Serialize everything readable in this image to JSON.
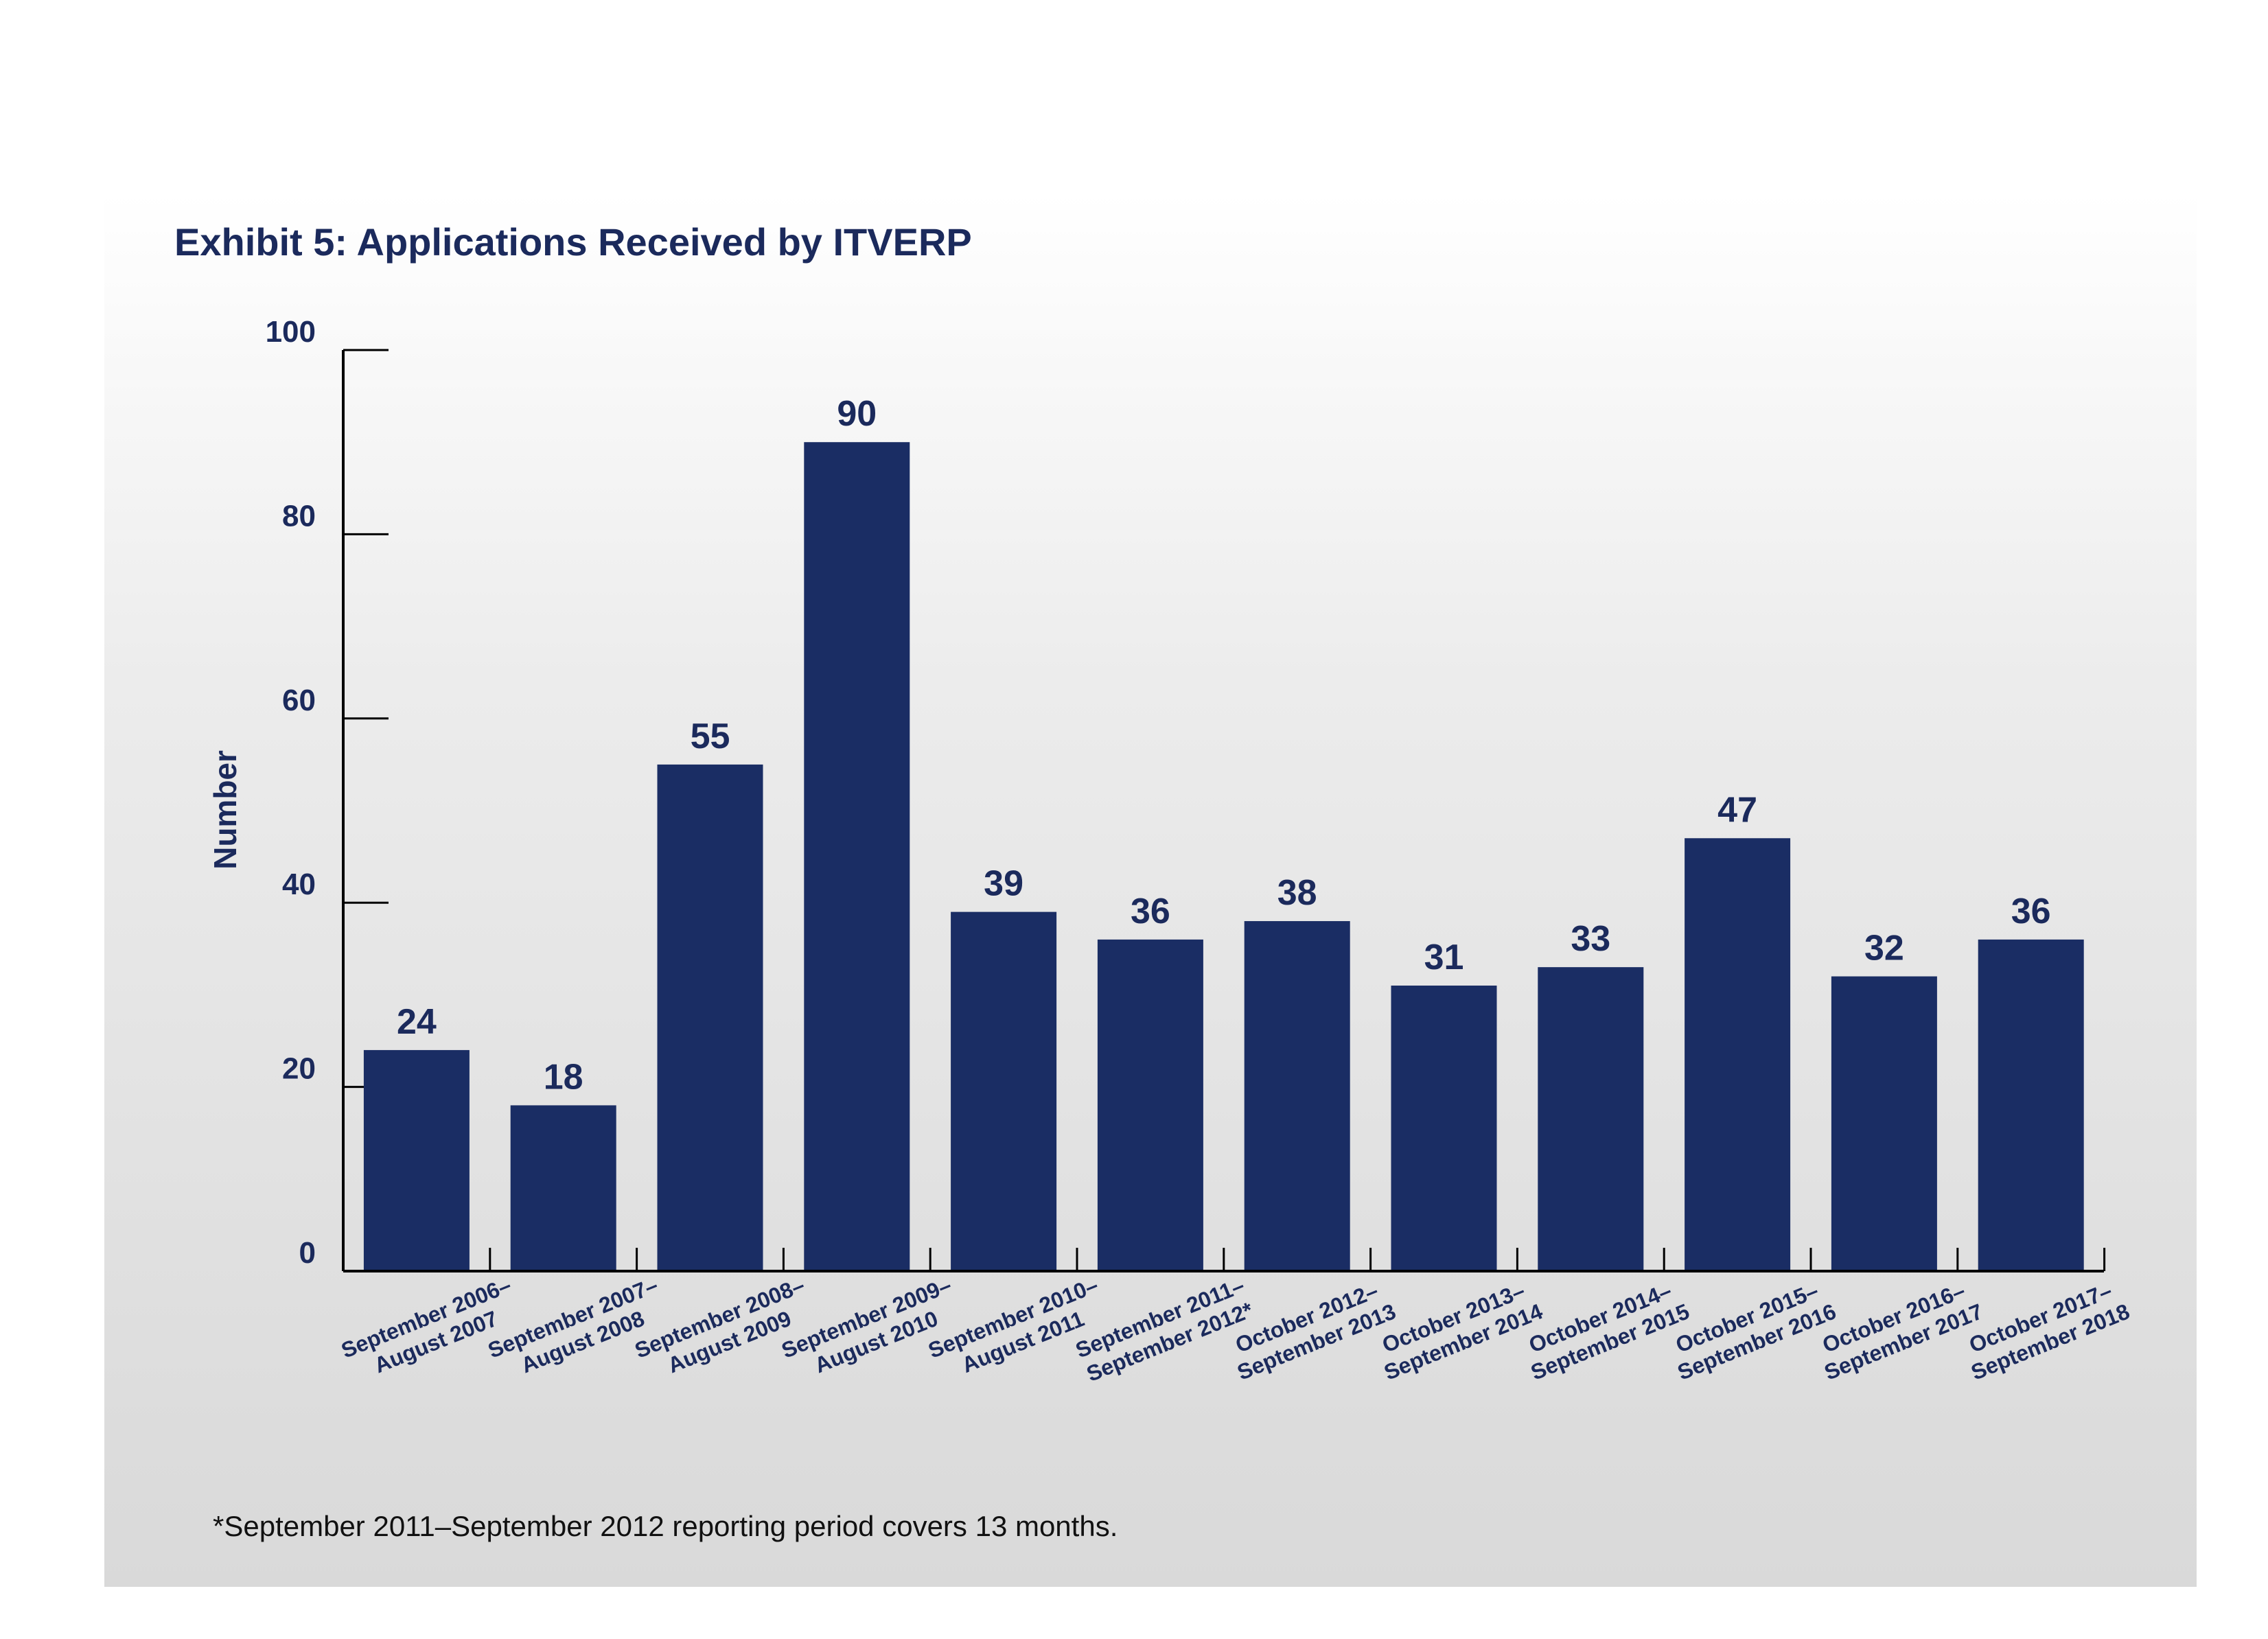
{
  "colors": {
    "bar": "#1a2d64",
    "text": "#1b2a5c",
    "axis": "#000000"
  },
  "chart_data": {
    "type": "bar",
    "title": "Exhibit 5: Applications Received by ITVERP",
    "xlabel": "",
    "ylabel": "Number",
    "ylim": [
      0,
      100
    ],
    "yticks": [
      0,
      20,
      40,
      60,
      80,
      100
    ],
    "grid": false,
    "legend": "none",
    "categories": [
      [
        "September 2006–",
        "August 2007"
      ],
      [
        "September 2007–",
        "August 2008"
      ],
      [
        "September 2008–",
        "August 2009"
      ],
      [
        "September 2009–",
        "August 2010"
      ],
      [
        "September 2010–",
        "August 2011"
      ],
      [
        "September 2011–",
        "September 2012*"
      ],
      [
        "October 2012–",
        "September 2013"
      ],
      [
        "October 2013–",
        "September 2014"
      ],
      [
        "October 2014–",
        "September 2015"
      ],
      [
        "October 2015–",
        "September 2016"
      ],
      [
        "October 2016–",
        "September 2017"
      ],
      [
        "October 2017–",
        "September 2018"
      ]
    ],
    "values": [
      24,
      18,
      55,
      90,
      39,
      36,
      38,
      31,
      33,
      47,
      32,
      36
    ],
    "footnote": "*September 2011–September 2012 reporting period covers 13 months."
  }
}
